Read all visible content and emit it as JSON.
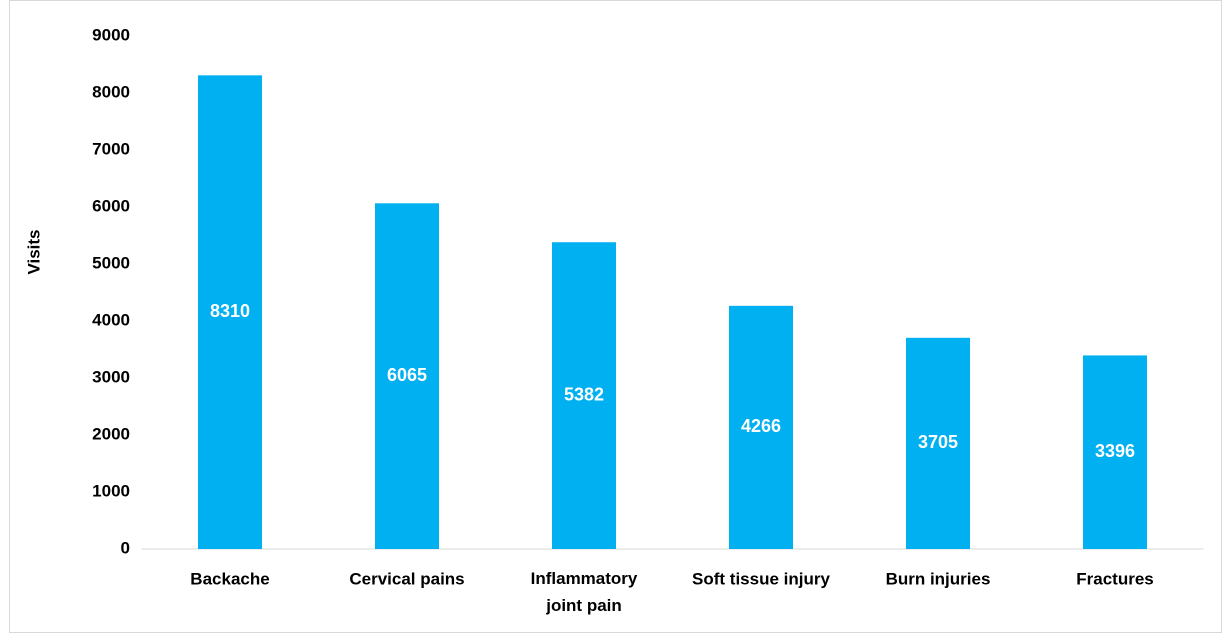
{
  "chart_data": {
    "type": "bar",
    "y_label": "Visits",
    "categories": [
      "Backache",
      "Cervical pains",
      "Inflammatory joint pain",
      "Soft tissue injury",
      "Burn injuries",
      "Fractures"
    ],
    "values": [
      8310,
      6065,
      5382,
      4266,
      3705,
      3396
    ],
    "color": "#00b0f0",
    "ylim": [
      0,
      9000
    ],
    "yticks": [
      0,
      1000,
      2000,
      3000,
      4000,
      5000,
      6000,
      7000,
      8000,
      9000
    ],
    "grid": false
  }
}
